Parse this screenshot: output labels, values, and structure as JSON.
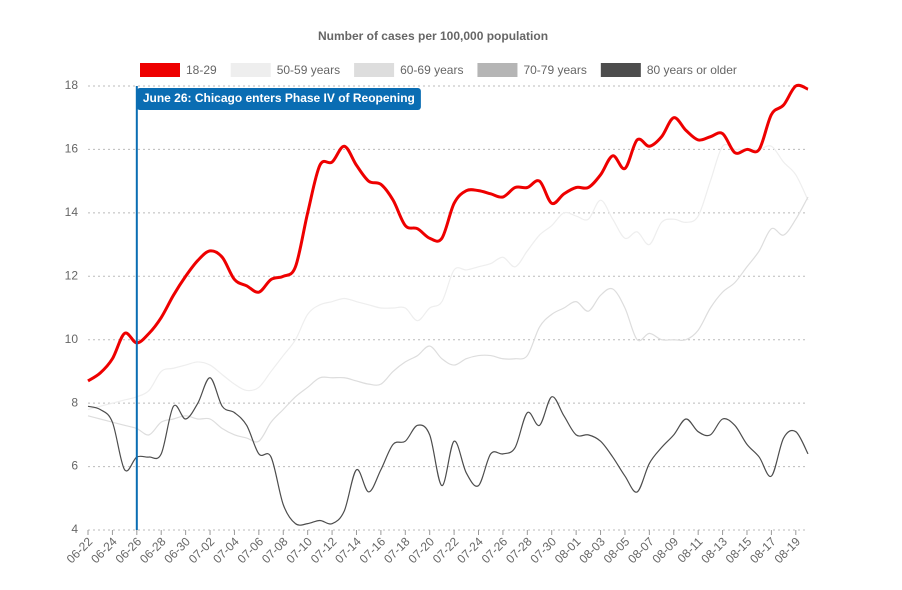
{
  "chart_data": {
    "type": "line",
    "title": "Number of cases per 100,000 population",
    "categories": [
      "06-22",
      null,
      "06-24",
      null,
      "06-26",
      null,
      "06-28",
      null,
      "06-30",
      null,
      "07-02",
      null,
      "07-04",
      null,
      "07-06",
      null,
      "07-08",
      null,
      "07-10",
      null,
      "07-12",
      null,
      "07-14",
      null,
      "07-16",
      null,
      "07-18",
      null,
      "07-20",
      null,
      "07-22",
      null,
      "07-24",
      null,
      "07-26",
      null,
      "07-28",
      null,
      "07-30",
      null,
      "08-01",
      null,
      "08-03",
      null,
      "08-05",
      null,
      "08-07",
      null,
      "08-09",
      null,
      "08-11",
      null,
      "08-13",
      null,
      "08-15",
      null,
      "08-17",
      null,
      "08-19",
      null
    ],
    "series": [
      {
        "name": "18-29",
        "color": "#ee0000",
        "values": [
          8.7,
          8.95,
          9.4,
          10.2,
          9.9,
          10.2,
          10.7,
          11.4,
          12.0,
          12.5,
          12.8,
          12.6,
          11.9,
          11.7,
          11.5,
          11.9,
          12.0,
          12.3,
          14.0,
          15.5,
          15.6,
          16.1,
          15.5,
          15.0,
          14.9,
          14.4,
          13.6,
          13.5,
          13.2,
          13.2,
          14.3,
          14.7,
          14.7,
          14.6,
          14.5,
          14.8,
          14.8,
          15.0,
          14.3,
          14.6,
          14.8,
          14.8,
          15.2,
          15.8,
          15.4,
          16.3,
          16.1,
          16.4,
          17.0,
          16.6,
          16.3,
          16.4,
          16.5,
          15.9,
          16.0,
          16.0,
          17.1,
          17.4,
          18.0,
          17.9
        ]
      },
      {
        "name": "50-59 years",
        "color": "#eeeeee",
        "values": [
          7.8,
          7.9,
          8.0,
          8.1,
          8.2,
          8.4,
          9.0,
          9.1,
          9.2,
          9.3,
          9.2,
          8.9,
          8.6,
          8.4,
          8.5,
          9.0,
          9.5,
          10.0,
          10.8,
          11.1,
          11.2,
          11.3,
          11.2,
          11.1,
          11.0,
          11.0,
          11.0,
          10.6,
          11.0,
          11.2,
          12.2,
          12.2,
          12.3,
          12.4,
          12.6,
          12.3,
          12.8,
          13.3,
          13.6,
          14.0,
          13.9,
          13.8,
          14.4,
          13.8,
          13.2,
          13.4,
          13.0,
          13.7,
          13.8,
          13.7,
          13.9,
          15.0,
          16.1,
          16.0,
          16.0,
          16.0,
          16.1,
          15.6,
          15.2,
          14.4
        ]
      },
      {
        "name": "60-69 years",
        "color": "#dddddd",
        "values": [
          7.6,
          7.5,
          7.4,
          7.3,
          7.2,
          7.0,
          7.4,
          7.5,
          7.6,
          7.5,
          7.5,
          7.2,
          7.0,
          6.9,
          6.8,
          7.4,
          7.8,
          8.2,
          8.5,
          8.8,
          8.8,
          8.8,
          8.7,
          8.6,
          8.6,
          9.0,
          9.3,
          9.5,
          9.8,
          9.4,
          9.2,
          9.4,
          9.5,
          9.5,
          9.4,
          9.4,
          9.5,
          10.4,
          10.8,
          11.0,
          11.2,
          10.9,
          11.4,
          11.6,
          11.0,
          10.0,
          10.2,
          10.0,
          10.0,
          10.0,
          10.3,
          11.0,
          11.5,
          11.8,
          12.3,
          12.8,
          13.5,
          13.3,
          13.8,
          14.5
        ]
      },
      {
        "name": "70-79 years",
        "color": "#b5b5b5",
        "values": [
          null,
          null,
          null,
          null,
          null,
          null,
          null,
          null,
          null,
          null,
          null,
          null,
          null,
          null,
          null,
          null,
          null,
          null,
          null,
          null,
          null,
          null,
          null,
          null,
          null,
          null,
          null,
          null,
          null,
          null,
          null,
          null,
          null,
          null,
          null,
          null,
          null,
          null,
          null,
          null,
          null,
          null,
          null,
          null,
          null,
          null,
          null,
          null,
          null,
          null,
          null,
          null,
          null,
          null,
          null,
          null,
          null,
          null,
          null,
          null
        ]
      },
      {
        "name": "80 years or older",
        "color": "#4d4d4d",
        "values": [
          7.9,
          7.8,
          7.4,
          5.9,
          6.3,
          6.3,
          6.4,
          7.9,
          7.5,
          8.0,
          8.8,
          7.9,
          7.7,
          7.3,
          6.4,
          6.3,
          4.8,
          4.2,
          4.2,
          4.3,
          4.2,
          4.6,
          5.9,
          5.2,
          5.9,
          6.7,
          6.8,
          7.3,
          7.0,
          5.4,
          6.8,
          5.8,
          5.4,
          6.4,
          6.4,
          6.6,
          7.7,
          7.3,
          8.2,
          7.6,
          7.0,
          7.0,
          6.8,
          6.3,
          5.7,
          5.2,
          6.1,
          6.6,
          7.0,
          7.5,
          7.1,
          7.0,
          7.5,
          7.3,
          6.7,
          6.3,
          5.7,
          6.9,
          7.1,
          6.4
        ]
      }
    ],
    "ylim": [
      4,
      18
    ],
    "yticks": [
      4,
      6,
      8,
      10,
      12,
      14,
      16,
      18
    ],
    "grid": true,
    "annotation": {
      "text": "June 26: Chicago enters Phase IV of Reopening",
      "x": "06-26",
      "color": "#0a6db3"
    }
  }
}
